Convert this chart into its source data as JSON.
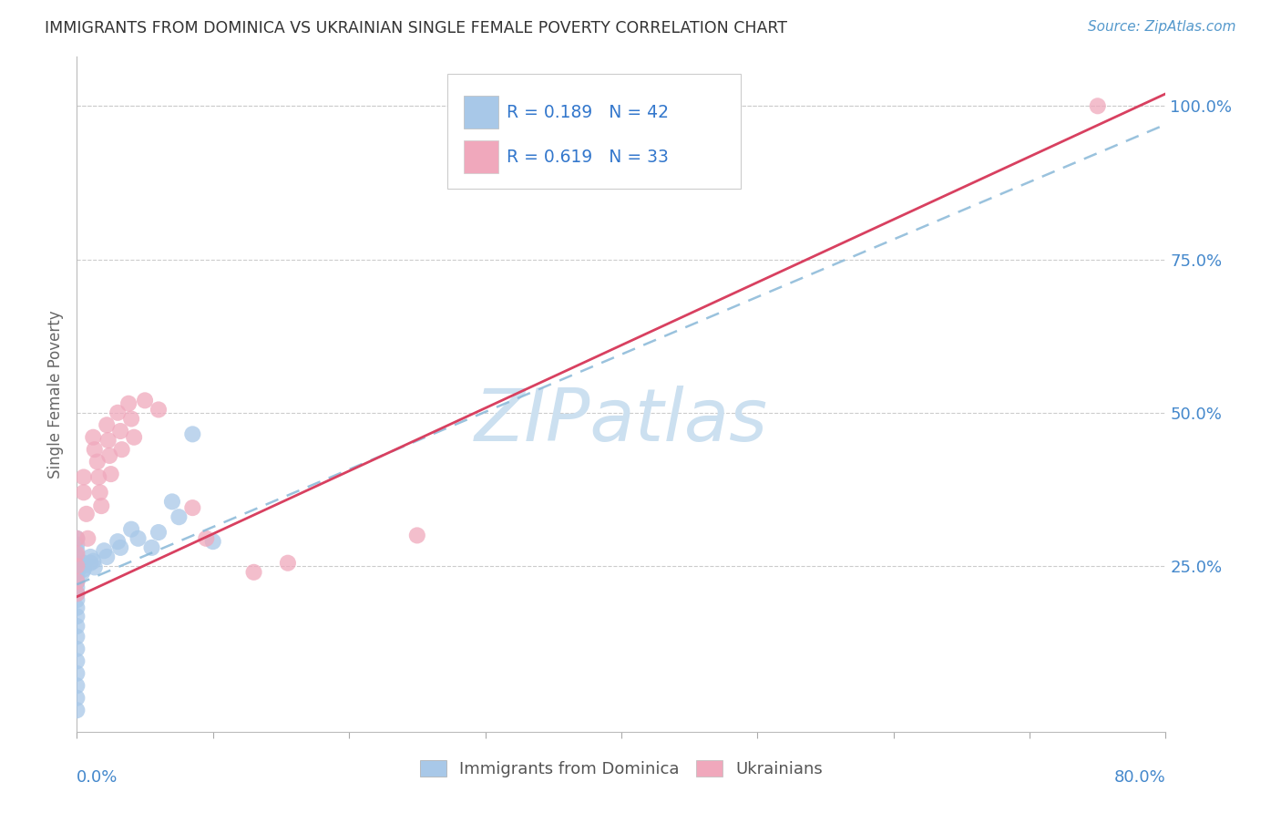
{
  "title": "IMMIGRANTS FROM DOMINICA VS UKRAINIAN SINGLE FEMALE POVERTY CORRELATION CHART",
  "source": "Source: ZipAtlas.com",
  "ylabel": "Single Female Poverty",
  "xlim": [
    0.0,
    0.8
  ],
  "ylim": [
    -0.02,
    1.08
  ],
  "ytick_vals": [
    0.0,
    0.25,
    0.5,
    0.75,
    1.0
  ],
  "ytick_labels": [
    "",
    "25.0%",
    "50.0%",
    "75.0%",
    "100.0%"
  ],
  "color_blue": "#a8c8e8",
  "color_pink": "#f0a8bc",
  "color_blue_line": "#88b8d8",
  "color_pink_line": "#d84060",
  "color_title": "#333333",
  "color_source": "#5599cc",
  "color_legend_text": "#3377cc",
  "color_yticklabel": "#4488cc",
  "color_watermark": "#cce0f0",
  "color_grid": "#cccccc",
  "blue_x": [
    0.0,
    0.0,
    0.0,
    0.0,
    0.0,
    0.0,
    0.0,
    0.0,
    0.0,
    0.0,
    0.0,
    0.0,
    0.0,
    0.0,
    0.0,
    0.0,
    0.0,
    0.0,
    0.0,
    0.0,
    0.0,
    0.0,
    0.004,
    0.004,
    0.005,
    0.005,
    0.01,
    0.01,
    0.012,
    0.013,
    0.02,
    0.022,
    0.03,
    0.032,
    0.04,
    0.045,
    0.055,
    0.06,
    0.07,
    0.075,
    0.085,
    0.1
  ],
  "blue_y": [
    0.295,
    0.285,
    0.275,
    0.265,
    0.255,
    0.248,
    0.24,
    0.232,
    0.224,
    0.215,
    0.205,
    0.195,
    0.182,
    0.168,
    0.152,
    0.135,
    0.115,
    0.095,
    0.075,
    0.055,
    0.035,
    0.015,
    0.25,
    0.24,
    0.255,
    0.245,
    0.265,
    0.255,
    0.258,
    0.248,
    0.275,
    0.265,
    0.29,
    0.28,
    0.31,
    0.295,
    0.28,
    0.305,
    0.355,
    0.33,
    0.465,
    0.29
  ],
  "pink_x": [
    0.0,
    0.0,
    0.0,
    0.0,
    0.0,
    0.005,
    0.005,
    0.007,
    0.008,
    0.012,
    0.013,
    0.015,
    0.016,
    0.017,
    0.018,
    0.022,
    0.023,
    0.024,
    0.025,
    0.03,
    0.032,
    0.033,
    0.038,
    0.04,
    0.042,
    0.05,
    0.06,
    0.085,
    0.095,
    0.25,
    0.13,
    0.155,
    0.75
  ],
  "pink_y": [
    0.295,
    0.27,
    0.25,
    0.225,
    0.205,
    0.395,
    0.37,
    0.335,
    0.295,
    0.46,
    0.44,
    0.42,
    0.395,
    0.37,
    0.348,
    0.48,
    0.455,
    0.43,
    0.4,
    0.5,
    0.47,
    0.44,
    0.515,
    0.49,
    0.46,
    0.52,
    0.505,
    0.345,
    0.295,
    0.3,
    0.24,
    0.255,
    1.0
  ],
  "R_blue": 0.189,
  "N_blue": 42,
  "R_pink": 0.619,
  "N_pink": 33,
  "line_blue_x0": 0.0,
  "line_blue_y0": 0.22,
  "line_blue_x1": 0.8,
  "line_blue_y1": 0.97,
  "line_pink_x0": 0.0,
  "line_pink_y0": 0.2,
  "line_pink_x1": 0.8,
  "line_pink_y1": 1.02
}
